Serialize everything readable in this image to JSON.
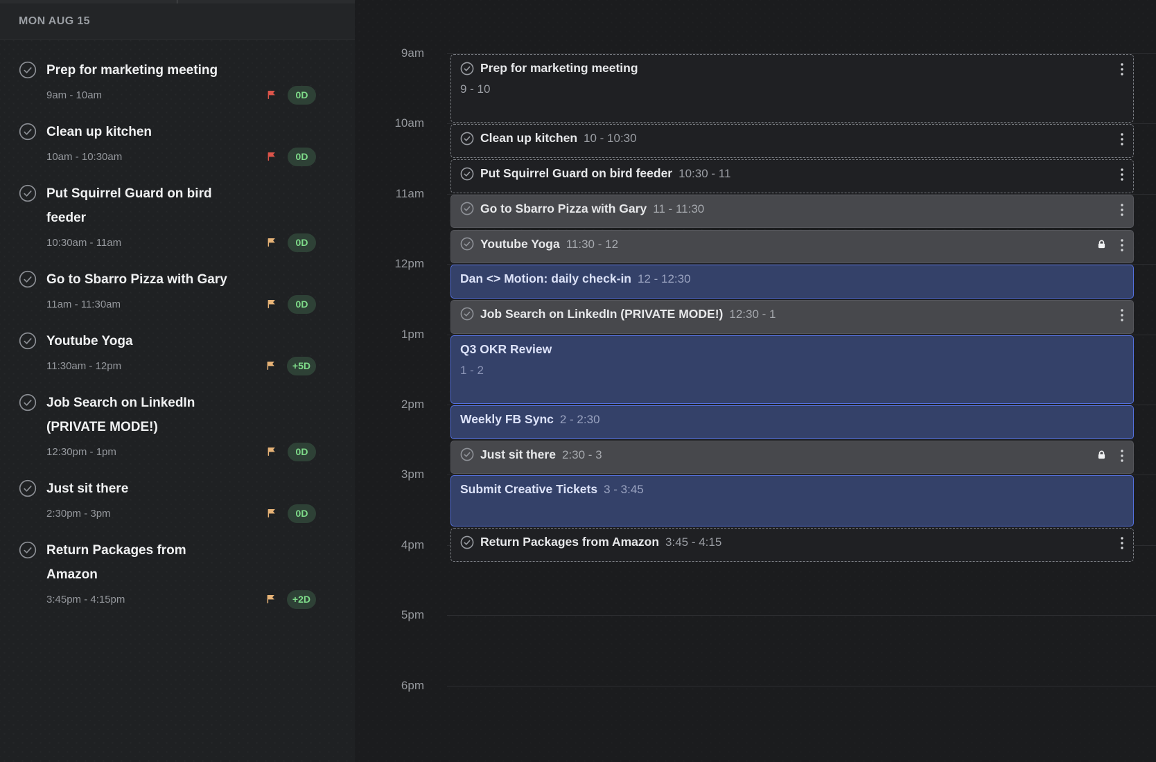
{
  "sidebar": {
    "header": "MON AUG 15",
    "tasks": [
      {
        "title": "Prep for marketing meeting",
        "time": "9am - 10am",
        "flag": "red",
        "badge": "0D"
      },
      {
        "title": "Clean up kitchen",
        "time": "10am - 10:30am",
        "flag": "red",
        "badge": "0D"
      },
      {
        "title": "Put Squirrel Guard on bird\nfeeder",
        "time": "10:30am - 11am",
        "flag": "yellow",
        "badge": "0D"
      },
      {
        "title": "Go to Sbarro Pizza with Gary",
        "time": "11am - 11:30am",
        "flag": "yellow",
        "badge": "0D"
      },
      {
        "title": "Youtube Yoga",
        "time": "11:30am - 12pm",
        "flag": "yellow",
        "badge": "+5D"
      },
      {
        "title": "Job Search on LinkedIn\n(PRIVATE MODE!)",
        "time": "12:30pm - 1pm",
        "flag": "yellow",
        "badge": "0D"
      },
      {
        "title": "Just sit there",
        "time": "2:30pm - 3pm",
        "flag": "yellow",
        "badge": "0D"
      },
      {
        "title": "Return Packages from\nAmazon",
        "time": "3:45pm - 4:15pm",
        "flag": "yellow",
        "badge": "+2D"
      }
    ]
  },
  "calendar": {
    "hour_labels": [
      "9am",
      "10am",
      "11am",
      "12pm",
      "1pm",
      "2pm",
      "3pm",
      "4pm",
      "5pm",
      "6pm"
    ],
    "events": [
      {
        "title": "Prep for marketing meeting",
        "time": "9 - 10",
        "start": 9,
        "end": 10,
        "style": "dashed",
        "layout": "stacked",
        "check": true,
        "kebab": true,
        "lock": false
      },
      {
        "title": "Clean up kitchen",
        "time": "10 - 10:30",
        "start": 10,
        "end": 10.5,
        "style": "dashed",
        "layout": "inline",
        "check": true,
        "kebab": true,
        "lock": false
      },
      {
        "title": "Put Squirrel Guard on bird feeder",
        "time": "10:30 - 11",
        "start": 10.5,
        "end": 11,
        "style": "dashed",
        "layout": "inline",
        "check": true,
        "kebab": true,
        "lock": false
      },
      {
        "title": "Go to Sbarro Pizza with Gary",
        "time": "11 - 11:30",
        "start": 11,
        "end": 11.5,
        "style": "solid",
        "layout": "inline",
        "check": true,
        "kebab": true,
        "lock": false
      },
      {
        "title": "Youtube Yoga",
        "time": "11:30 - 12",
        "start": 11.5,
        "end": 12,
        "style": "solid",
        "layout": "inline",
        "check": true,
        "kebab": true,
        "lock": true
      },
      {
        "title": "Dan <> Motion: daily check-in",
        "time": "12 - 12:30",
        "start": 12,
        "end": 12.5,
        "style": "meeting",
        "layout": "inline",
        "check": false,
        "kebab": false,
        "lock": false
      },
      {
        "title": "Job Search on LinkedIn (PRIVATE MODE!)",
        "time": "12:30 - 1",
        "start": 12.5,
        "end": 13,
        "style": "solid",
        "layout": "inline",
        "check": true,
        "kebab": true,
        "lock": false
      },
      {
        "title": "Q3 OKR Review",
        "time": "1 - 2",
        "start": 13,
        "end": 14,
        "style": "meeting",
        "layout": "stacked",
        "check": false,
        "kebab": false,
        "lock": false
      },
      {
        "title": "Weekly FB Sync",
        "time": "2 - 2:30",
        "start": 14,
        "end": 14.5,
        "style": "meeting",
        "layout": "inline",
        "check": false,
        "kebab": false,
        "lock": false
      },
      {
        "title": "Just sit there",
        "time": "2:30 - 3",
        "start": 14.5,
        "end": 15,
        "style": "solid",
        "layout": "inline",
        "check": true,
        "kebab": true,
        "lock": true
      },
      {
        "title": "Submit Creative Tickets",
        "time": "3 - 3:45",
        "start": 15,
        "end": 15.75,
        "style": "meeting",
        "layout": "inline",
        "check": false,
        "kebab": false,
        "lock": false
      },
      {
        "title": "Return Packages from Amazon",
        "time": "3:45 - 4:15",
        "start": 15.75,
        "end": 16.25,
        "style": "dashed",
        "layout": "inline",
        "check": true,
        "kebab": true,
        "lock": false
      }
    ]
  },
  "colors": {
    "flag_red": "#dc544a",
    "flag_yellow": "#e7b377",
    "badge_green_text": "#7fdc8a",
    "badge_green_bg": "#2e4136",
    "meeting_fill": "#344169",
    "meeting_border": "#5470dd",
    "solid_event_fill": "#47484c"
  }
}
